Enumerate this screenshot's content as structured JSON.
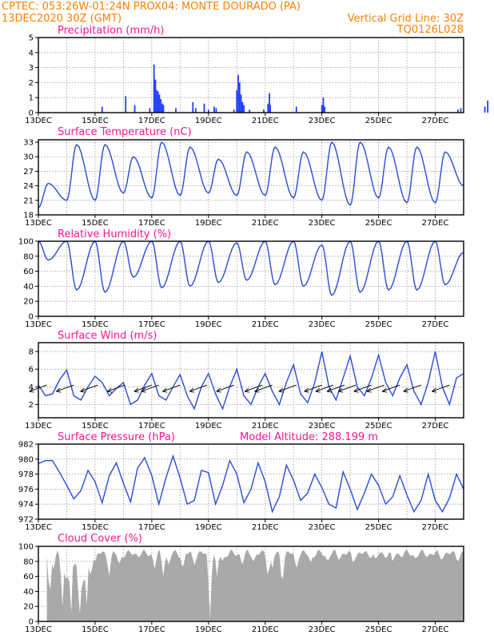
{
  "header": {
    "line1": "CPTEC:  053:26W-01:24N   PROX04: MONTE DOURADO (PA)",
    "line2_left": "13DEC2020 30Z (GMT)",
    "line2_right": "Vertical Grid Line: 30Z",
    "line3_right": "TQ0126L028"
  },
  "colors": {
    "header": "#ff7f00",
    "panel_title": "#ff1493",
    "series_line": "#2a4bd7",
    "precip_bar": "#1f3fff",
    "cloud_fill": "#a9a9a9",
    "wind_arrow": "#000000"
  },
  "x_axis": {
    "start": "13DEC",
    "days": 15,
    "labels": [
      "13DEC",
      "15DEC",
      "17DEC",
      "19DEC",
      "21DEC",
      "23DEC",
      "25DEC",
      "27DEC"
    ],
    "label_day_offsets": [
      0,
      2,
      4,
      6,
      8,
      10,
      12,
      14
    ]
  },
  "chart_data": [
    {
      "type": "bar",
      "title": "Precipitation (mm/h)",
      "ylim": [
        0,
        5
      ],
      "yticks": [
        "0",
        "1",
        "2",
        "3",
        "4",
        "5"
      ],
      "grid": true,
      "x_unit": "day offset from 13DEC 06Z",
      "points": [
        [
          2.25,
          0.4
        ],
        [
          3.08,
          1.1
        ],
        [
          3.4,
          0.5
        ],
        [
          3.93,
          0.3
        ],
        [
          4.08,
          3.2
        ],
        [
          4.13,
          2.2
        ],
        [
          4.18,
          1.5
        ],
        [
          4.22,
          1.4
        ],
        [
          4.27,
          1.2
        ],
        [
          4.32,
          0.9
        ],
        [
          4.37,
          0.6
        ],
        [
          4.41,
          0.5
        ],
        [
          4.85,
          0.3
        ],
        [
          5.45,
          0.7
        ],
        [
          5.55,
          0.3
        ],
        [
          5.85,
          0.6
        ],
        [
          6.0,
          0.2
        ],
        [
          6.2,
          0.4
        ],
        [
          6.27,
          0.3
        ],
        [
          6.9,
          0.2
        ],
        [
          7.0,
          1.5
        ],
        [
          7.05,
          2.5
        ],
        [
          7.1,
          2.0
        ],
        [
          7.15,
          1.2
        ],
        [
          7.2,
          0.7
        ],
        [
          7.25,
          0.5
        ],
        [
          7.45,
          0.2
        ],
        [
          7.95,
          0.2
        ],
        [
          8.1,
          0.6
        ],
        [
          8.15,
          1.3
        ],
        [
          8.18,
          0.5
        ],
        [
          9.1,
          0.4
        ],
        [
          10.0,
          0.5
        ],
        [
          10.05,
          1.0
        ],
        [
          10.1,
          0.4
        ],
        [
          14.8,
          0.2
        ],
        [
          14.9,
          0.3
        ],
        [
          15.75,
          0.4
        ],
        [
          15.85,
          0.8
        ]
      ]
    },
    {
      "type": "line",
      "title": "Surface Temperature (nC)",
      "ylim": [
        18,
        33.5
      ],
      "yticks": [
        "18",
        "21",
        "24",
        "27",
        "30",
        "33"
      ],
      "grid": true,
      "x_unit": "day offset from 13DEC 06Z",
      "daily_max": [
        24.5,
        32.5,
        32.5,
        30.0,
        33.0,
        32.0,
        29.5,
        31.0,
        32.0,
        31.0,
        33.0,
        33.0,
        32.0,
        32.0,
        31.0
      ],
      "daily_min": [
        19.5,
        21.0,
        21.0,
        22.5,
        21.5,
        22.0,
        22.5,
        22.0,
        22.0,
        21.5,
        21.0,
        20.0,
        21.5,
        20.5,
        20.5
      ],
      "end_value": 24.0
    },
    {
      "type": "line",
      "title": "Relative Humidity (%)",
      "ylim": [
        0,
        100
      ],
      "yticks": [
        "0",
        "20",
        "40",
        "60",
        "80",
        "100"
      ],
      "grid": true,
      "x_unit": "day offset from 13DEC 06Z",
      "daily_min": [
        75,
        35,
        32,
        52,
        38,
        40,
        45,
        48,
        42,
        40,
        28,
        32,
        35,
        35,
        42
      ],
      "daily_max": [
        100,
        100,
        100,
        100,
        100,
        100,
        100,
        98,
        100,
        100,
        95,
        100,
        100,
        100,
        100
      ],
      "end_value": 85
    },
    {
      "type": "line",
      "title": "Surface Wind (m/s)",
      "ylim": [
        0.5,
        9
      ],
      "yticks": [
        "2",
        "4",
        "6",
        "8"
      ],
      "grid": true,
      "x_unit": "day offset from 13DEC 06Z",
      "x": [
        0,
        0.25,
        0.5,
        0.75,
        1,
        1.25,
        1.5,
        1.75,
        2,
        2.25,
        2.5,
        2.75,
        3,
        3.25,
        3.5,
        3.75,
        4,
        4.25,
        4.5,
        4.75,
        5,
        5.25,
        5.5,
        5.75,
        6,
        6.25,
        6.5,
        6.75,
        7,
        7.25,
        7.5,
        7.75,
        8,
        8.25,
        8.5,
        8.75,
        9,
        9.25,
        9.5,
        9.75,
        10,
        10.25,
        10.5,
        10.75,
        11,
        11.25,
        11.5,
        11.75,
        12,
        12.25,
        12.5,
        12.75,
        13,
        13.25,
        13.5,
        13.75,
        14,
        14.25,
        14.5,
        14.75,
        15
      ],
      "values": [
        4.2,
        3.0,
        3.2,
        4.8,
        5.9,
        3.0,
        2.5,
        4.0,
        5.2,
        4.5,
        3.0,
        3.8,
        4.5,
        2.0,
        2.5,
        4.2,
        5.5,
        3.0,
        2.5,
        4.0,
        5.4,
        3.0,
        1.5,
        4.0,
        5.5,
        3.2,
        1.5,
        4.0,
        6.0,
        3.0,
        2.0,
        4.0,
        5.5,
        3.5,
        2.0,
        4.5,
        6.5,
        3.2,
        2.2,
        4.5,
        8.0,
        4.0,
        2.5,
        5.0,
        7.5,
        4.0,
        3.0,
        5.0,
        7.6,
        4.5,
        3.0,
        5.0,
        6.5,
        3.5,
        2.0,
        4.5,
        8.0,
        4.0,
        2.0,
        5.0,
        5.5
      ],
      "arrows_day_offset": [
        0.3,
        1.25,
        2.1,
        3.05,
        4.0,
        4.25,
        5.0,
        5.95,
        6.9,
        7.9,
        8.25,
        9.1,
        10.0,
        10.4,
        10.8,
        11.2,
        11.75,
        12.2,
        12.75,
        13.5,
        14.5
      ]
    },
    {
      "type": "line",
      "title": "Surface Pressure (hPa)",
      "subtitle": "Model Altitude: 288.199 m",
      "ylim": [
        972,
        982
      ],
      "yticks": [
        "972",
        "974",
        "976",
        "978",
        "980",
        "982"
      ],
      "grid": true,
      "x_unit": "day offset from 13DEC 06Z",
      "x": [
        0,
        0.25,
        0.5,
        0.75,
        1,
        1.25,
        1.5,
        1.75,
        2,
        2.25,
        2.5,
        2.75,
        3,
        3.25,
        3.5,
        3.75,
        4,
        4.25,
        4.5,
        4.75,
        5,
        5.25,
        5.5,
        5.75,
        6,
        6.25,
        6.5,
        6.75,
        7,
        7.25,
        7.5,
        7.75,
        8,
        8.25,
        8.5,
        8.75,
        9,
        9.25,
        9.5,
        9.75,
        10,
        10.25,
        10.5,
        10.75,
        11,
        11.25,
        11.5,
        11.75,
        12,
        12.25,
        12.5,
        12.75,
        13,
        13.25,
        13.5,
        13.75,
        14,
        14.25,
        14.5,
        14.75,
        15
      ],
      "values": [
        979.4,
        979.8,
        979.8,
        978.2,
        976.5,
        974.7,
        975.8,
        978.5,
        977.0,
        974.2,
        977.8,
        979.5,
        976.8,
        974.3,
        978.8,
        980.2,
        977.8,
        974.0,
        977.5,
        980.4,
        977.5,
        974.0,
        974.5,
        978.5,
        978.2,
        974.0,
        976.5,
        979.8,
        978.0,
        974.2,
        976.0,
        979.5,
        977.0,
        973.0,
        975.0,
        979.2,
        977.2,
        974.5,
        975.5,
        978.0,
        976.2,
        974.0,
        973.5,
        978.3,
        976.0,
        973.3,
        975.5,
        978.0,
        976.5,
        974.0,
        975.0,
        977.8,
        975.2,
        973.0,
        974.5,
        978.0,
        974.5,
        973.0,
        974.8,
        978.0,
        976.0
      ]
    },
    {
      "type": "area",
      "title": "Cloud Cover (%)",
      "ylim": [
        0,
        100
      ],
      "yticks": [
        "0",
        "20",
        "40",
        "60",
        "80",
        "100"
      ],
      "grid": true,
      "x_unit": "day offset from 13DEC 06Z",
      "typical_level": 90,
      "dips": [
        [
          0.4,
          35
        ],
        [
          0.55,
          70
        ],
        [
          0.85,
          20
        ],
        [
          1.0,
          50
        ],
        [
          1.15,
          10
        ],
        [
          1.3,
          75
        ],
        [
          1.45,
          2
        ],
        [
          1.55,
          40
        ],
        [
          1.7,
          20
        ],
        [
          1.85,
          60
        ],
        [
          2.0,
          80
        ],
        [
          2.5,
          60
        ],
        [
          2.85,
          75
        ],
        [
          4.1,
          70
        ],
        [
          4.4,
          60
        ],
        [
          4.6,
          75
        ],
        [
          5.1,
          70
        ],
        [
          5.5,
          75
        ],
        [
          6.05,
          3
        ],
        [
          6.3,
          60
        ],
        [
          6.5,
          80
        ],
        [
          7.2,
          75
        ],
        [
          7.6,
          80
        ],
        [
          8.1,
          60
        ],
        [
          8.25,
          70
        ],
        [
          8.6,
          50
        ],
        [
          9.1,
          70
        ],
        [
          9.6,
          78
        ],
        [
          10.2,
          80
        ],
        [
          10.6,
          82
        ],
        [
          11.1,
          78
        ],
        [
          11.9,
          82
        ],
        [
          12.5,
          80
        ],
        [
          13.3,
          84
        ],
        [
          14.2,
          82
        ],
        [
          14.8,
          80
        ]
      ]
    }
  ]
}
